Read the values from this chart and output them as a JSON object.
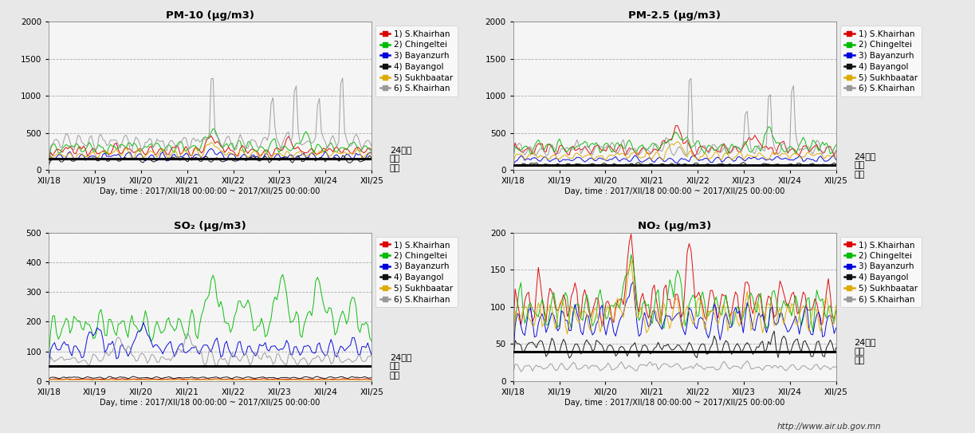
{
  "title_pm10": "PM-10 (μg/m3)",
  "title_pm25": "PM-2.5 (μg/m3)",
  "title_so2": "SO₂ (μg/m3)",
  "title_no2": "NO₂ (μg/m3)",
  "xlabel": "Day, time",
  "xdate_label": " : 2017/XII/18 00:00:00 ~ 2017/XII/25 00:00:00",
  "xtick_labels": [
    "XII/18",
    "XII/19",
    "XII/20",
    "XII/21",
    "XII/22",
    "XII/23",
    "XII/24",
    "XII/25"
  ],
  "legend_labels": [
    "1) S.Khairhan",
    "2) Chingeltei",
    "3) Bayanzurh",
    "4) Bayangol",
    "5) Sukhbaatar",
    "6) S.Khairhan"
  ],
  "colors": [
    "#dd0000",
    "#00bb00",
    "#0000dd",
    "#111111",
    "#ddaa00",
    "#999999"
  ],
  "pm10_ylim": [
    0,
    2000
  ],
  "pm10_yticks": [
    0,
    500,
    1000,
    1500,
    2000
  ],
  "pm10_hline": 150,
  "pm25_ylim": [
    0,
    2000
  ],
  "pm25_yticks": [
    0,
    500,
    1000,
    1500,
    2000
  ],
  "pm25_hline": 65,
  "so2_ylim": [
    0,
    500
  ],
  "so2_yticks": [
    0,
    100,
    200,
    300,
    400,
    500
  ],
  "so2_hline": 50,
  "no2_ylim": [
    0,
    200
  ],
  "no2_yticks": [
    0,
    50,
    100,
    150,
    200
  ],
  "no2_hline": 40,
  "annotation_text": "24시간\n평균\n기준",
  "footer_text": "http://www.air.ub.gov.mn",
  "n_points": 168,
  "background_color": "#e8e8e8",
  "plot_bg_color": "#f5f5f5"
}
